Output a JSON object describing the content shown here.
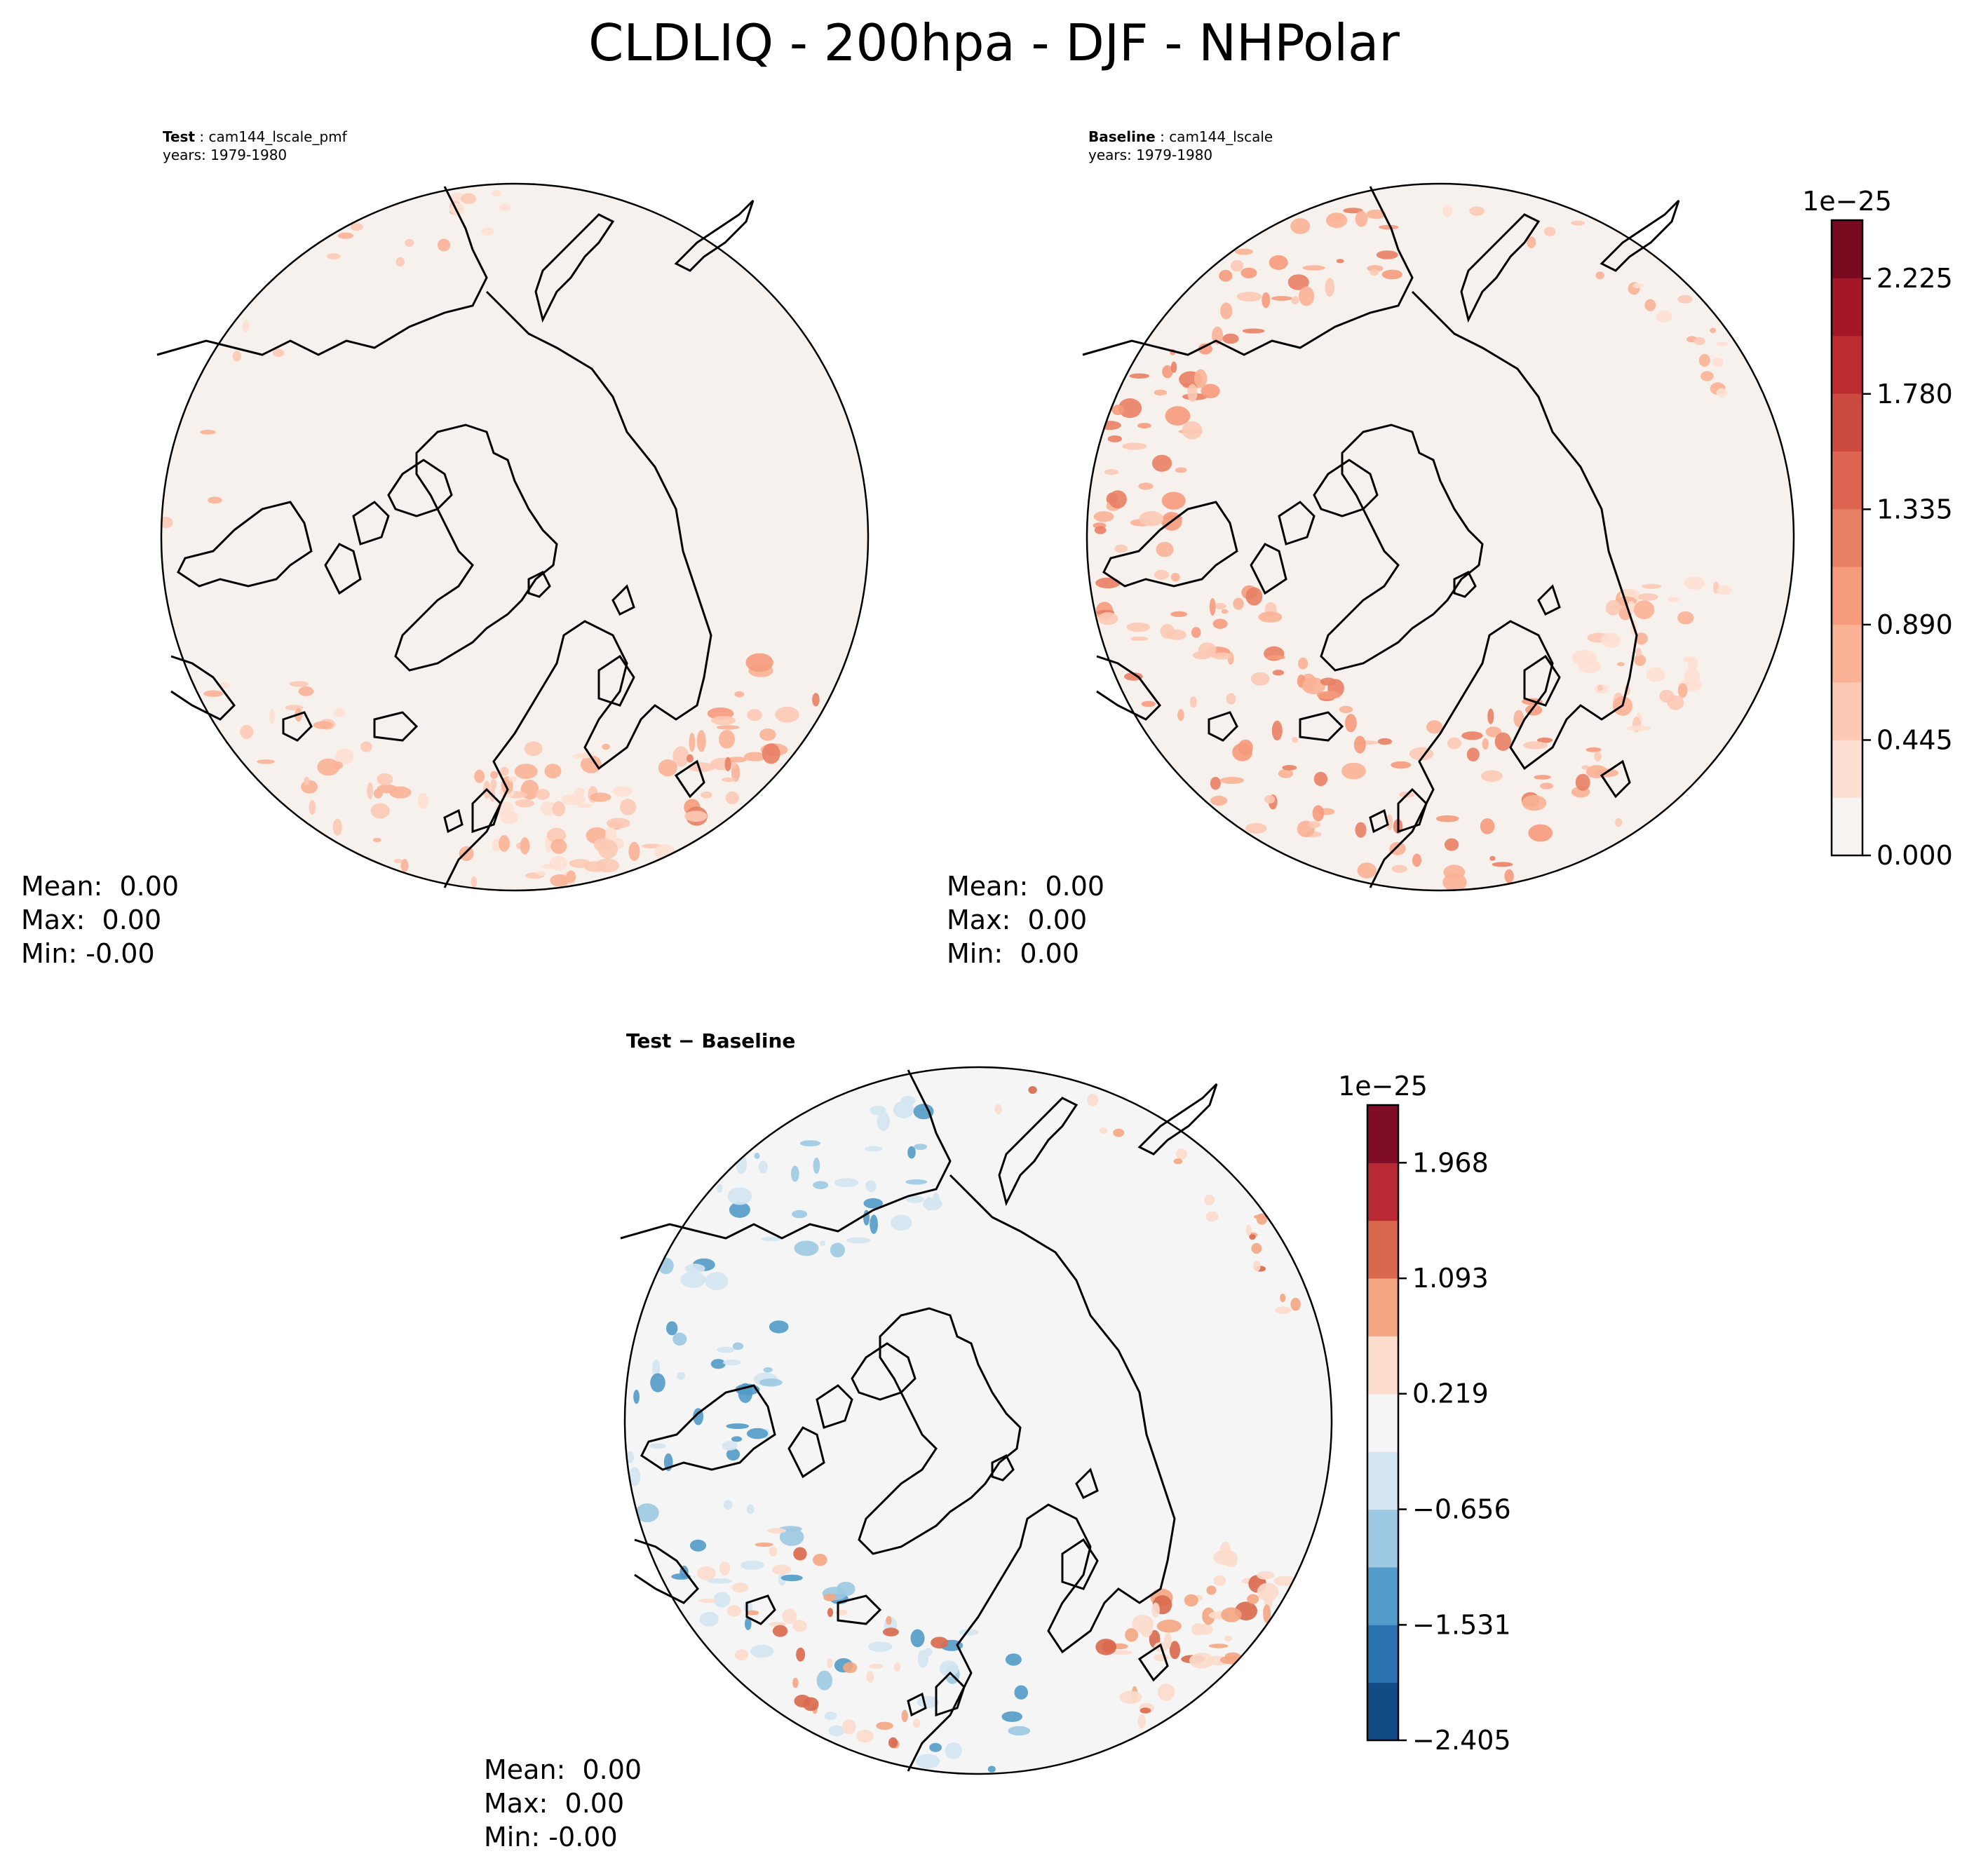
{
  "figure": {
    "title": "CLDLIQ - 200hpa - DJF - NHPolar"
  },
  "panels": {
    "test": {
      "label": "Test",
      "case": "cam144_lscale_pmf",
      "years": "years: 1979-1980",
      "stats": {
        "mean": "Mean:  0.00",
        "max": "Max:  0.00",
        "min": "Min: -0.00"
      }
    },
    "baseline": {
      "label": "Baseline",
      "case": "cam144_lscale",
      "years": "years: 1979-1980",
      "stats": {
        "mean": "Mean:  0.00",
        "max": "Max:  0.00",
        "min": "Min:  0.00"
      }
    },
    "diff": {
      "title": "Test − Baseline",
      "stats": {
        "mean": "Mean:  0.00",
        "max": "Max:  0.00",
        "min": "Min: -0.00"
      }
    }
  },
  "chart_data": [
    {
      "type": "heatmap",
      "title": "Baseline: cam144_lscale",
      "colorbar": {
        "label": "1e−25",
        "range": [
          0.0,
          2.45
        ],
        "ticks": [
          0.0,
          0.445,
          0.89,
          1.335,
          1.78,
          2.225
        ],
        "tick_labels": [
          "0.000",
          "0.445",
          "0.890",
          "1.335",
          "1.780",
          "2.225"
        ],
        "levels": 11,
        "colors": [
          "#f7f4f2",
          "#fde0d2",
          "#fcc9b4",
          "#f9b295",
          "#f59a7b",
          "#e88064",
          "#dc6450",
          "#cc4a3f",
          "#bb2c31",
          "#a51627",
          "#770a1f"
        ]
      }
    },
    {
      "type": "heatmap",
      "title": "Test − Baseline",
      "colorbar": {
        "label": "1e−25",
        "range": [
          -2.405,
          2.405
        ],
        "ticks": [
          -2.405,
          -1.531,
          -0.656,
          0.219,
          1.093,
          1.968
        ],
        "tick_labels": [
          "−2.405",
          "−1.531",
          "−0.656",
          "0.219",
          "1.093",
          "1.968"
        ],
        "levels": 11,
        "colors": [
          "#134b87",
          "#2b72b0",
          "#529bc8",
          "#9cc9e1",
          "#d3e6f1",
          "#f5f5f5",
          "#fcdccc",
          "#f4a683",
          "#d9694e",
          "#b92a35",
          "#800d27"
        ]
      }
    }
  ]
}
